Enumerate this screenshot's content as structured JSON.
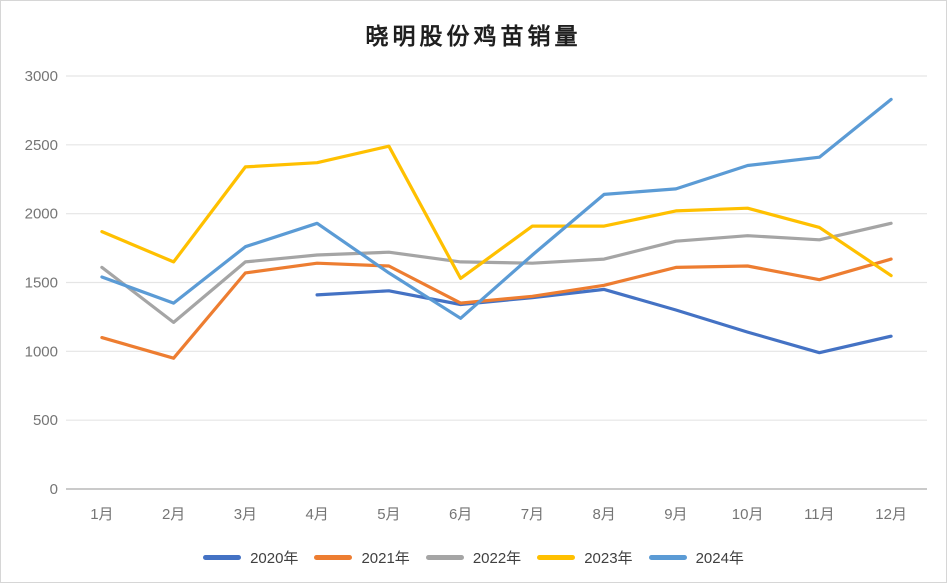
{
  "chart_data": {
    "type": "line",
    "title": "晓明股份鸡苗销量",
    "categories": [
      "1月",
      "2月",
      "3月",
      "4月",
      "5月",
      "6月",
      "7月",
      "8月",
      "9月",
      "10月",
      "11月",
      "12月"
    ],
    "series": [
      {
        "name": "2020年",
        "color": "#4472C4",
        "values": [
          null,
          null,
          null,
          1410,
          1440,
          1340,
          1390,
          1450,
          1300,
          1140,
          990,
          1110
        ]
      },
      {
        "name": "2021年",
        "color": "#ED7D31",
        "values": [
          1100,
          950,
          1570,
          1640,
          1620,
          1350,
          1400,
          1480,
          1610,
          1620,
          1520,
          1670
        ]
      },
      {
        "name": "2022年",
        "color": "#A5A5A5",
        "values": [
          1610,
          1210,
          1650,
          1700,
          1720,
          1650,
          1640,
          1670,
          1800,
          1840,
          1810,
          1930
        ]
      },
      {
        "name": "2023年",
        "color": "#FFC000",
        "values": [
          1870,
          1650,
          2340,
          2370,
          2490,
          1530,
          1910,
          1910,
          2020,
          2040,
          1900,
          1550
        ]
      },
      {
        "name": "2024年",
        "color": "#5B9BD5",
        "values": [
          1540,
          1350,
          1760,
          1930,
          1570,
          1240,
          1700,
          2140,
          2180,
          2350,
          2410,
          2830
        ]
      }
    ],
    "ylim": [
      0,
      3000
    ],
    "yticks": [
      0,
      500,
      1000,
      1500,
      2000,
      2500,
      3000
    ],
    "xlabel": "",
    "ylabel": "",
    "grid": true,
    "legend_position": "bottom",
    "colors": {
      "grid_line": "#e5e5e5",
      "zero_axis_line": "#b8b8b8",
      "tick_text": "#757575",
      "title_text": "#1f1f1f",
      "legend_text": "#404040",
      "background": "#ffffff"
    }
  }
}
